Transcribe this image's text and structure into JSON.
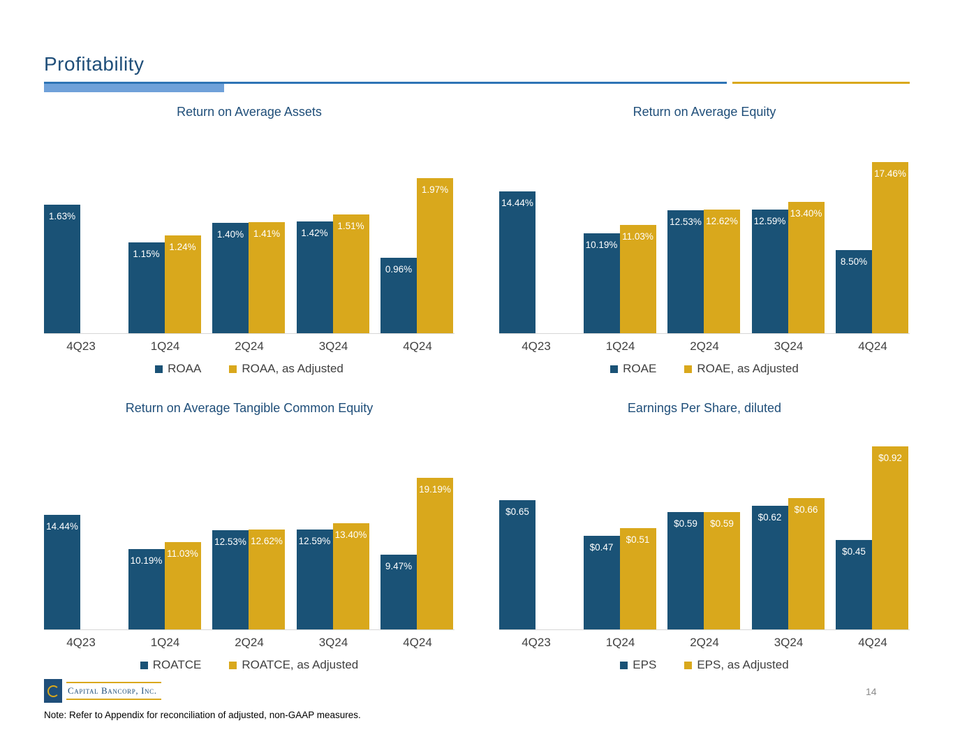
{
  "page": {
    "title": "Profitability",
    "note": "Note: Refer to Appendix for reconciliation of adjusted, non-GAAP measures.",
    "page_number": "14",
    "logo_text": "Capital Bancorp, Inc."
  },
  "colors": {
    "title_blue": "#1F4E79",
    "line_blue": "#2E74B5",
    "accent_light_blue": "#6FA1D9",
    "bar_blue": "#1A5276",
    "bar_gold": "#D9A81C"
  },
  "chart_data": [
    {
      "type": "bar",
      "title": "Return on Average Assets",
      "categories": [
        "4Q23",
        "1Q24",
        "2Q24",
        "3Q24",
        "4Q24"
      ],
      "series": [
        {
          "name": "ROAA",
          "values": [
            1.63,
            1.15,
            1.4,
            1.42,
            0.96
          ],
          "labels": [
            "1.63%",
            "1.15%",
            "1.40%",
            "1.42%",
            "0.96%"
          ]
        },
        {
          "name": "ROAA, as Adjusted",
          "values": [
            null,
            1.24,
            1.41,
            1.51,
            1.97
          ],
          "labels": [
            null,
            "1.24%",
            "1.41%",
            "1.51%",
            "1.97%"
          ]
        }
      ],
      "ylim": [
        0,
        2.65
      ],
      "grid": false,
      "legend_position": "bottom"
    },
    {
      "type": "bar",
      "title": "Return on Average Equity",
      "categories": [
        "4Q23",
        "1Q24",
        "2Q24",
        "3Q24",
        "4Q24"
      ],
      "series": [
        {
          "name": "ROAE",
          "values": [
            14.44,
            10.19,
            12.53,
            12.59,
            8.5
          ],
          "labels": [
            "14.44%",
            "10.19%",
            "12.53%",
            "12.59%",
            "8.50%"
          ]
        },
        {
          "name": "ROAE, as Adjusted",
          "values": [
            null,
            11.03,
            12.62,
            13.4,
            17.46
          ],
          "labels": [
            null,
            "11.03%",
            "12.62%",
            "13.40%",
            "17.46%"
          ]
        }
      ],
      "ylim": [
        0,
        21.3
      ],
      "grid": false,
      "legend_position": "bottom"
    },
    {
      "type": "bar",
      "title": "Return on Average Tangible Common Equity",
      "categories": [
        "4Q23",
        "1Q24",
        "2Q24",
        "3Q24",
        "4Q24"
      ],
      "series": [
        {
          "name": "ROATCE",
          "values": [
            14.44,
            10.19,
            12.53,
            12.59,
            9.47
          ],
          "labels": [
            "14.44%",
            "10.19%",
            "12.53%",
            "12.59%",
            "9.47%"
          ]
        },
        {
          "name": "ROATCE, as Adjusted",
          "values": [
            null,
            11.03,
            12.62,
            13.4,
            19.19
          ],
          "labels": [
            null,
            "11.03%",
            "12.62%",
            "13.40%",
            "19.19%"
          ]
        }
      ],
      "ylim": [
        0,
        26.4
      ],
      "grid": false,
      "legend_position": "bottom"
    },
    {
      "type": "bar",
      "title": "Earnings Per Share, diluted",
      "categories": [
        "4Q23",
        "1Q24",
        "2Q24",
        "3Q24",
        "4Q24"
      ],
      "series": [
        {
          "name": "EPS",
          "values": [
            0.65,
            0.47,
            0.59,
            0.62,
            0.45
          ],
          "labels": [
            "$0.65",
            "$0.47",
            "$0.59",
            "$0.62",
            "$0.45"
          ]
        },
        {
          "name": "EPS, as Adjusted",
          "values": [
            null,
            0.51,
            0.59,
            0.66,
            0.92
          ],
          "labels": [
            null,
            "$0.51",
            "$0.59",
            "$0.66",
            "$0.92"
          ]
        }
      ],
      "ylim": [
        0,
        1.05
      ],
      "grid": false,
      "legend_position": "bottom"
    }
  ]
}
